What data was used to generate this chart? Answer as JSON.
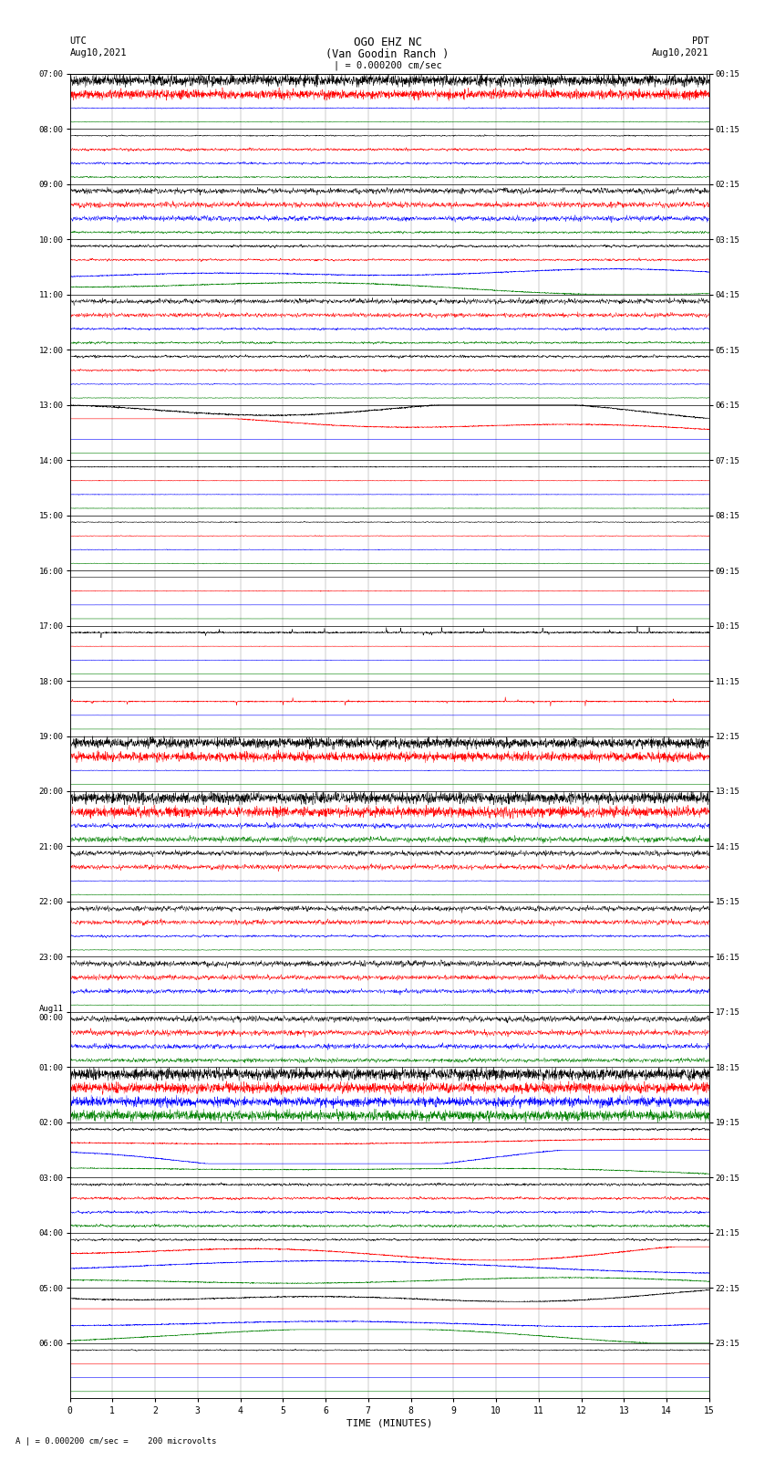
{
  "title_line1": "OGO EHZ NC",
  "title_line2": "(Van Goodin Ranch )",
  "scale_label": "| = 0.000200 cm/sec",
  "bottom_label": "A | = 0.000200 cm/sec =    200 microvolts",
  "xlabel": "TIME (MINUTES)",
  "left_label": "UTC",
  "left_date": "Aug10,2021",
  "right_label": "PDT",
  "right_date": "Aug10,2021",
  "utc_label_list": [
    "07:00",
    "08:00",
    "09:00",
    "10:00",
    "11:00",
    "12:00",
    "13:00",
    "14:00",
    "15:00",
    "16:00",
    "17:00",
    "18:00",
    "19:00",
    "20:00",
    "21:00",
    "22:00",
    "23:00",
    "Aug11\n00:00",
    "01:00",
    "02:00",
    "03:00",
    "04:00",
    "05:00",
    "06:00"
  ],
  "pdt_label_list": [
    "00:15",
    "01:15",
    "02:15",
    "03:15",
    "04:15",
    "05:15",
    "06:15",
    "07:15",
    "08:15",
    "09:15",
    "10:15",
    "11:15",
    "12:15",
    "13:15",
    "14:15",
    "15:15",
    "16:15",
    "17:15",
    "18:15",
    "19:15",
    "20:15",
    "21:15",
    "22:15",
    "23:15"
  ],
  "colors": [
    "black",
    "red",
    "blue",
    "green"
  ],
  "bg_color": "white",
  "fig_width": 8.5,
  "fig_height": 16.13,
  "rows_per_group": 4,
  "n_groups": 24,
  "n_pts": 3000
}
